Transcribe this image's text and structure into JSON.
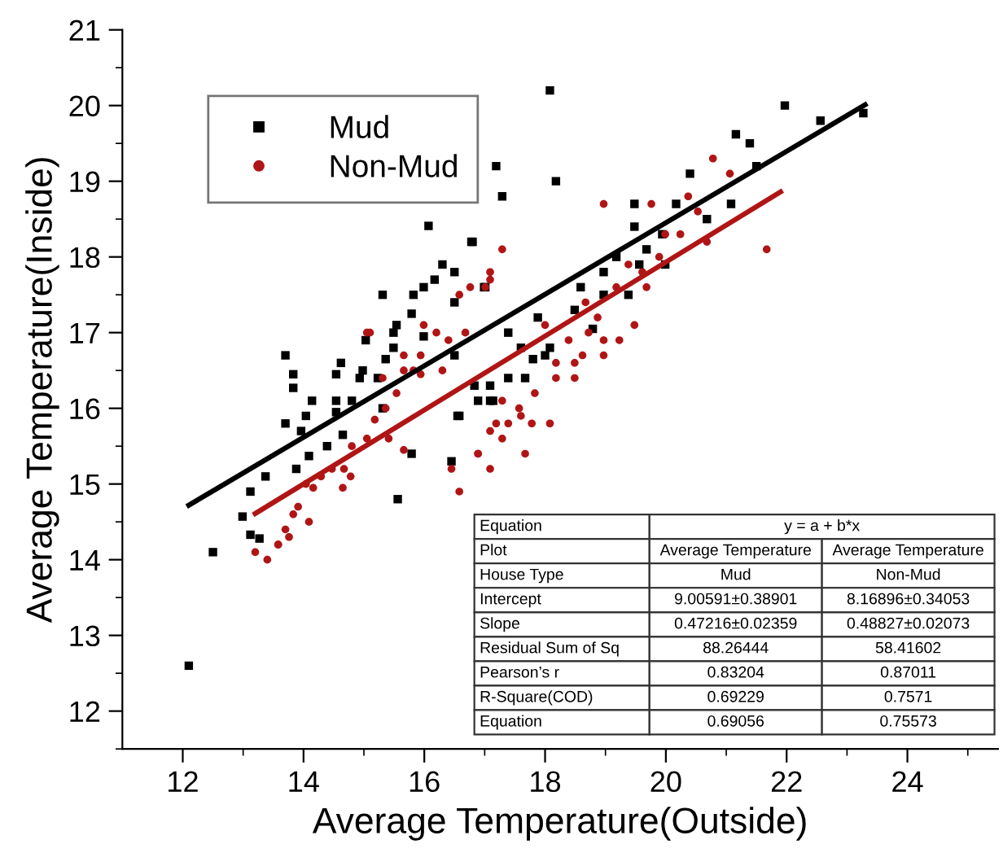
{
  "chart_data": {
    "type": "scatter",
    "xlabel": "Average Temperature(Outside)",
    "ylabel": "Average Temperature(Inside)",
    "xlim": [
      11,
      25.5
    ],
    "ylim": [
      11.5,
      21
    ],
    "xticks": [
      12,
      14,
      16,
      18,
      20,
      22,
      24
    ],
    "yticks": [
      12,
      13,
      14,
      15,
      16,
      17,
      18,
      19,
      20,
      21
    ],
    "grid": false,
    "legend": "top left",
    "series": [
      {
        "name": "Mud",
        "marker": "square",
        "color": "#000000",
        "x": [
          18.08,
          21.97,
          22.56,
          23.27,
          21.16,
          21.39,
          17.19,
          18.18,
          17.29,
          20.4,
          21.5,
          19.48,
          20.17,
          20.68,
          21.08,
          19.48,
          19.94,
          19.68,
          19.18,
          16.8,
          16.99,
          18.97,
          18.59,
          18.97,
          19.38,
          19.56,
          19.99,
          17.88,
          18.49,
          18.79,
          17.39,
          17.6,
          18.08,
          17.8,
          18.0,
          17.39,
          17.67,
          17.09,
          16.89,
          17.09,
          16.07,
          16.78,
          16.3,
          16.5,
          15.31,
          16.17,
          15.82,
          15.99,
          16.5,
          17.01,
          15.79,
          15.54,
          15.03,
          13.7,
          14.62,
          14.98,
          15.49,
          15.99,
          16.5,
          13.83,
          14.54,
          15.23,
          14.14,
          14.54,
          15.31,
          16.55,
          13.83,
          13.7,
          14.04,
          13.96,
          14.54,
          14.8,
          14.93,
          15.36,
          14.65,
          14.09,
          14.39,
          13.88,
          13.37,
          13.12,
          12.99,
          13.12,
          13.27,
          12.5,
          12.1,
          15.79,
          15.56,
          16.58,
          16.45,
          16.83,
          17.14,
          15.49
        ],
        "values": [
          20.2,
          20.0,
          19.8,
          19.9,
          19.62,
          19.5,
          19.2,
          19.0,
          18.8,
          19.1,
          19.2,
          18.7,
          18.7,
          18.5,
          18.7,
          18.4,
          18.3,
          18.1,
          18.0,
          18.2,
          17.6,
          17.8,
          17.6,
          17.5,
          17.5,
          17.9,
          17.9,
          17.2,
          17.3,
          17.05,
          17.0,
          16.8,
          16.8,
          16.65,
          16.7,
          16.4,
          16.4,
          16.3,
          16.1,
          16.1,
          18.41,
          18.2,
          17.9,
          17.8,
          17.5,
          17.7,
          17.5,
          17.6,
          17.4,
          17.6,
          17.25,
          17.1,
          16.9,
          16.7,
          16.6,
          16.5,
          16.8,
          16.95,
          16.7,
          16.45,
          16.45,
          16.4,
          16.1,
          16.1,
          16.0,
          15.9,
          16.27,
          15.8,
          15.9,
          15.7,
          15.95,
          16.1,
          16.4,
          16.65,
          15.65,
          15.37,
          15.5,
          15.2,
          15.1,
          14.9,
          14.57,
          14.33,
          14.28,
          14.1,
          12.6,
          15.4,
          14.8,
          15.9,
          15.3,
          16.3,
          16.1,
          17.0
        ]
      },
      {
        "name": "Non-Mud",
        "marker": "circle",
        "color": "#b01515",
        "x": [
          20.78,
          21.06,
          20.37,
          18.97,
          19.76,
          20.53,
          20.24,
          20.68,
          21.67,
          19.99,
          19.89,
          19.38,
          19.61,
          19.68,
          19.18,
          18.67,
          18.87,
          18.0,
          18.39,
          18.72,
          18.97,
          19.23,
          19.48,
          18.18,
          18.49,
          18.62,
          18.97,
          17.83,
          18.18,
          18.49,
          17.29,
          17.57,
          17.6,
          17.19,
          17.39,
          17.78,
          18.08,
          17.09,
          17.29,
          16.89,
          17.67,
          17.09,
          17.29,
          17.09,
          17.09,
          16.76,
          16.58,
          17.01,
          15.99,
          16.2,
          16.4,
          16.68,
          15.1,
          16.3,
          15.66,
          15.82,
          15.31,
          15.66,
          15.18,
          15.36,
          15.54,
          15.05,
          14.8,
          14.67,
          14.47,
          14.29,
          14.16,
          14.04,
          13.91,
          13.83,
          14.09,
          13.7,
          13.76,
          13.58,
          13.4,
          13.2,
          13.58,
          14.65,
          14.78,
          15.41,
          15.66,
          15.94,
          15.94,
          16.89,
          16.45,
          16.58,
          15.05
        ],
        "values": [
          19.3,
          19.1,
          18.8,
          18.7,
          18.7,
          18.6,
          18.3,
          18.2,
          18.1,
          18.3,
          18.0,
          17.9,
          17.8,
          17.6,
          17.6,
          17.4,
          17.2,
          17.1,
          16.9,
          17.0,
          16.9,
          16.9,
          17.1,
          16.6,
          16.6,
          16.7,
          16.7,
          16.2,
          16.4,
          16.4,
          16.1,
          16.0,
          15.9,
          15.8,
          15.8,
          15.8,
          15.8,
          15.7,
          15.6,
          15.4,
          15.4,
          15.2,
          18.1,
          17.8,
          17.7,
          17.6,
          17.5,
          17.6,
          17.1,
          17.0,
          16.9,
          17.0,
          17.0,
          16.5,
          16.7,
          16.5,
          16.4,
          16.5,
          15.85,
          16.0,
          16.2,
          15.6,
          15.5,
          15.2,
          15.2,
          15.1,
          14.95,
          15.0,
          14.7,
          14.6,
          14.5,
          14.4,
          14.3,
          14.2,
          14.0,
          14.1,
          14.2,
          14.95,
          15.1,
          15.6,
          15.45,
          16.45,
          16.7,
          15.4,
          15.2,
          14.9,
          17.0
        ]
      },
      {
        "type": "line",
        "color": "#000000",
        "x": [
          12.1,
          23.3
        ],
        "values": [
          14.72,
          20.01
        ]
      },
      {
        "type": "line",
        "color": "#b01515",
        "x": [
          13.2,
          21.9
        ],
        "values": [
          14.61,
          18.86
        ]
      }
    ],
    "annotations": [
      "Equation",
      "y = a + b*x",
      "Plot",
      "Average Temperature",
      "Average Temperature",
      "House Type",
      "Mud",
      "Non-Mud",
      "Intercept",
      "9.00591±0.38901",
      "8.16896±0.34053",
      "Slope",
      "0.47216±0.02359",
      "0.48827±0.02073",
      "Residual Sum of Sq",
      "88.26444",
      "58.41602",
      "Pearson’s r",
      "0.83204",
      "0.87011",
      "R-Square(COD)",
      "0.69229",
      "0.7571",
      "Equation",
      "0.69056",
      "0.75573"
    ]
  }
}
